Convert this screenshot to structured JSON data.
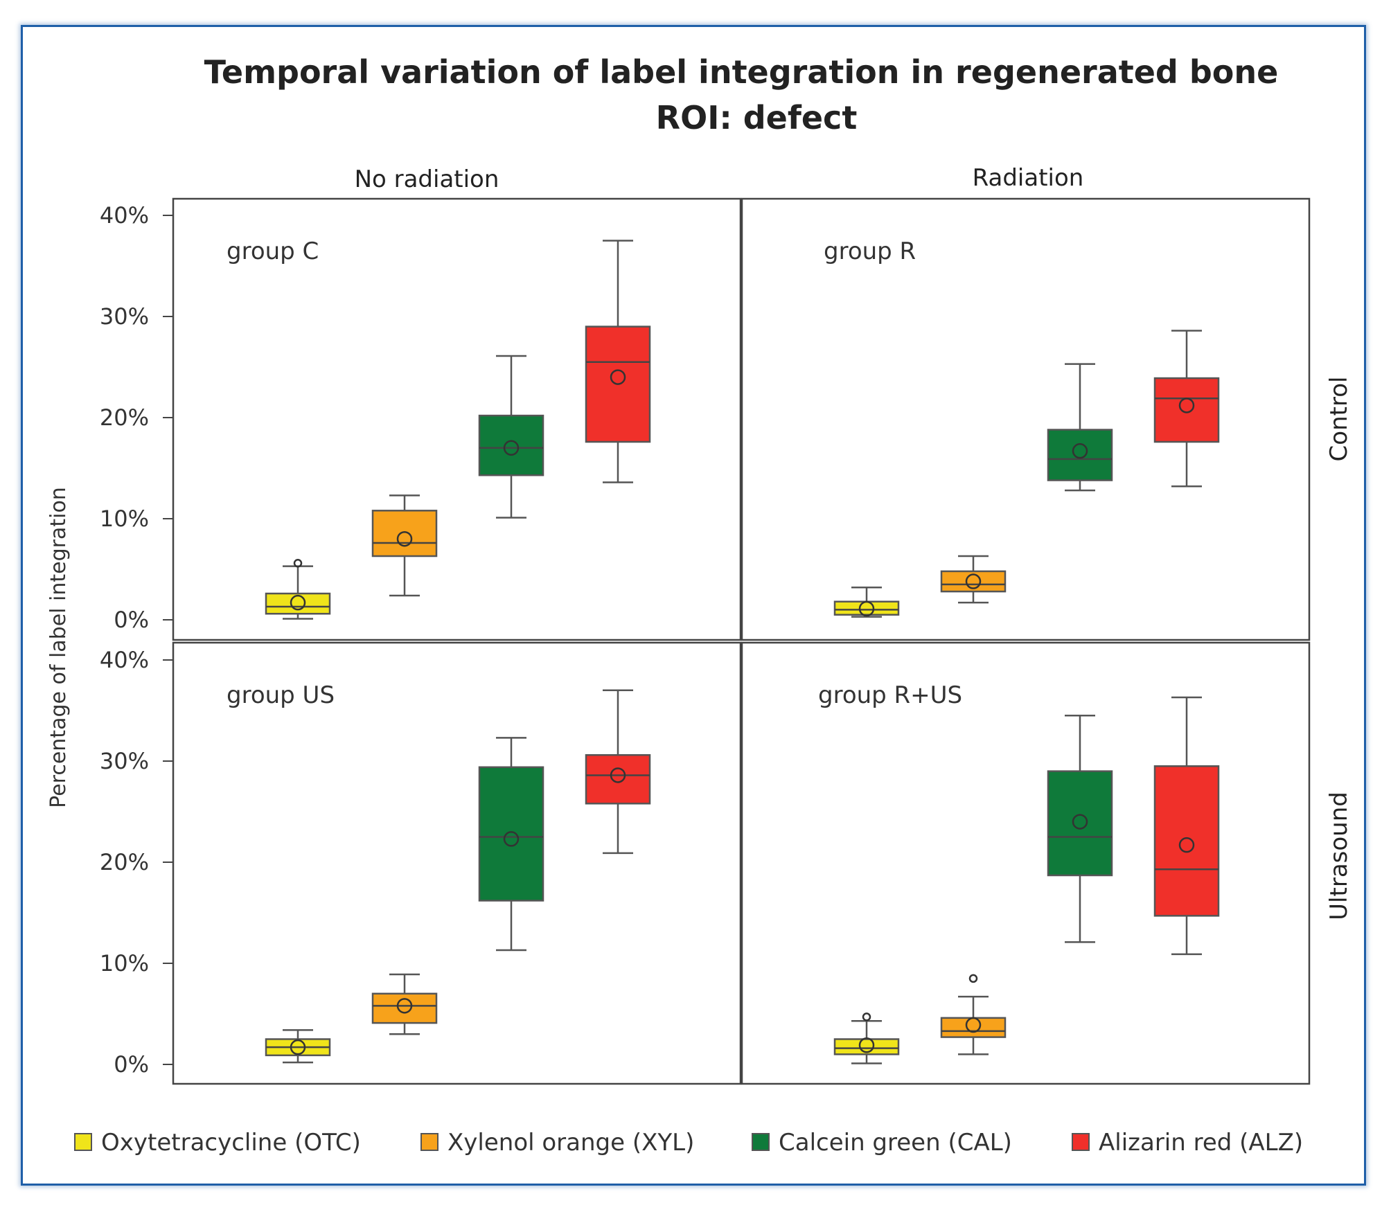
{
  "chart_data": {
    "type": "box",
    "title": "Temporal variation of label integration in regenerated bone",
    "subtitle": "ROI: defect",
    "column_headers": [
      "No radiation",
      "Radiation"
    ],
    "row_headers": [
      "Control",
      "Ultrasound"
    ],
    "ylabel": "Percentage of label integration",
    "ylim": [
      0,
      40
    ],
    "yticks": [
      0,
      10,
      20,
      30,
      40
    ],
    "ytick_labels": [
      "0%",
      "10%",
      "20%",
      "30%",
      "40%"
    ],
    "grid": false,
    "legend_position": "bottom",
    "series": [
      {
        "name": "Oxytetracycline (OTC)",
        "color": "#f0e41a"
      },
      {
        "name": "Xylenol orange (XYL)",
        "color": "#f7a21b"
      },
      {
        "name": "Calcein green (CAL)",
        "color": "#0f7a3a"
      },
      {
        "name": "Alizarin red (ALZ)",
        "color": "#f0302a"
      }
    ],
    "panels": [
      {
        "label": "group C",
        "row": 0,
        "col": 0,
        "boxes": [
          {
            "min": 0.1,
            "q1": 0.6,
            "median": 1.3,
            "q3": 2.6,
            "max": 5.3,
            "mean": 1.7,
            "outliers": [
              5.6
            ]
          },
          {
            "min": 2.4,
            "q1": 6.3,
            "median": 7.6,
            "q3": 10.8,
            "max": 12.3,
            "mean": 8.0,
            "outliers": []
          },
          {
            "min": 10.1,
            "q1": 14.3,
            "median": 17.0,
            "q3": 20.2,
            "max": 26.1,
            "mean": 17.0,
            "outliers": []
          },
          {
            "min": 13.6,
            "q1": 17.6,
            "median": 25.5,
            "q3": 29.0,
            "max": 37.5,
            "mean": 24.0,
            "outliers": []
          }
        ]
      },
      {
        "label": "group R",
        "row": 0,
        "col": 1,
        "boxes": [
          {
            "min": 0.3,
            "q1": 0.5,
            "median": 1.0,
            "q3": 1.8,
            "max": 3.2,
            "mean": 1.1,
            "outliers": []
          },
          {
            "min": 1.7,
            "q1": 2.8,
            "median": 3.5,
            "q3": 4.8,
            "max": 6.3,
            "mean": 3.8,
            "outliers": []
          },
          {
            "min": 12.8,
            "q1": 13.8,
            "median": 15.9,
            "q3": 18.8,
            "max": 25.3,
            "mean": 16.7,
            "outliers": []
          },
          {
            "min": 13.2,
            "q1": 17.6,
            "median": 21.9,
            "q3": 23.9,
            "max": 28.6,
            "mean": 21.2,
            "outliers": []
          }
        ]
      },
      {
        "label": "group US",
        "row": 1,
        "col": 0,
        "boxes": [
          {
            "min": 0.2,
            "q1": 0.9,
            "median": 1.7,
            "q3": 2.5,
            "max": 3.4,
            "mean": 1.7,
            "outliers": []
          },
          {
            "min": 3.0,
            "q1": 4.1,
            "median": 5.8,
            "q3": 7.0,
            "max": 8.9,
            "mean": 5.8,
            "outliers": []
          },
          {
            "min": 11.3,
            "q1": 16.2,
            "median": 22.5,
            "q3": 29.4,
            "max": 32.3,
            "mean": 22.3,
            "outliers": []
          },
          {
            "min": 20.9,
            "q1": 25.8,
            "median": 28.6,
            "q3": 30.6,
            "max": 37.0,
            "mean": 28.6,
            "outliers": []
          }
        ]
      },
      {
        "label": "group R+US",
        "row": 1,
        "col": 1,
        "boxes": [
          {
            "min": 0.1,
            "q1": 1.0,
            "median": 1.6,
            "q3": 2.5,
            "max": 4.3,
            "mean": 1.9,
            "outliers": [
              4.7
            ]
          },
          {
            "min": 1.0,
            "q1": 2.7,
            "median": 3.3,
            "q3": 4.6,
            "max": 6.7,
            "mean": 3.9,
            "outliers": [
              8.5
            ]
          },
          {
            "min": 12.1,
            "q1": 18.7,
            "median": 22.5,
            "q3": 29.0,
            "max": 34.5,
            "mean": 24.0,
            "outliers": []
          },
          {
            "min": 10.9,
            "q1": 14.7,
            "median": 19.3,
            "q3": 29.5,
            "max": 36.3,
            "mean": 21.7,
            "outliers": []
          }
        ]
      }
    ]
  }
}
